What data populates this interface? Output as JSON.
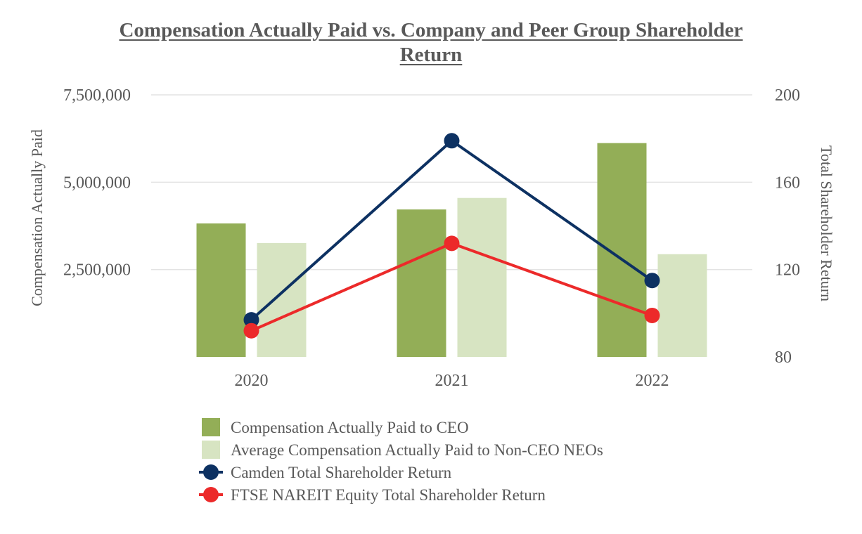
{
  "chart_data": {
    "type": "bar",
    "title_lines": [
      "Compensation Actually Paid vs. Company and Peer Group Shareholder",
      "Return"
    ],
    "categories": [
      "2020",
      "2021",
      "2022"
    ],
    "ylabel": "Compensation Actually Paid",
    "y2label": "Total Shareholder Return",
    "ylim": [
      0,
      7500000
    ],
    "y2lim": [
      80,
      200
    ],
    "y_ticks": [
      2500000,
      5000000,
      7500000
    ],
    "y_tick_labels": [
      "2,500,000",
      "5,000,000",
      "7,500,000"
    ],
    "y2_ticks": [
      80,
      120,
      160,
      200
    ],
    "y2_tick_labels": [
      "80",
      "120",
      "160",
      "200"
    ],
    "grid": true,
    "legend_position": "bottom",
    "bar_series": [
      {
        "name": "Compensation Actually Paid to CEO",
        "values": [
          3820000,
          4220000,
          6120000
        ],
        "color": "#93ae57"
      },
      {
        "name": "Average Compensation Actually Paid to Non-CEO NEOs",
        "values": [
          3260000,
          4550000,
          2940000
        ],
        "color": "#d7e4c2"
      }
    ],
    "line_series": [
      {
        "name": "Camden Total Shareholder Return",
        "axis": "right",
        "values": [
          97,
          179,
          115
        ],
        "color": "#0d3162"
      },
      {
        "name": "FTSE NAREIT Equity Total Shareholder Return",
        "axis": "right",
        "values": [
          92,
          132,
          99
        ],
        "color": "#ec2a2a"
      }
    ]
  }
}
